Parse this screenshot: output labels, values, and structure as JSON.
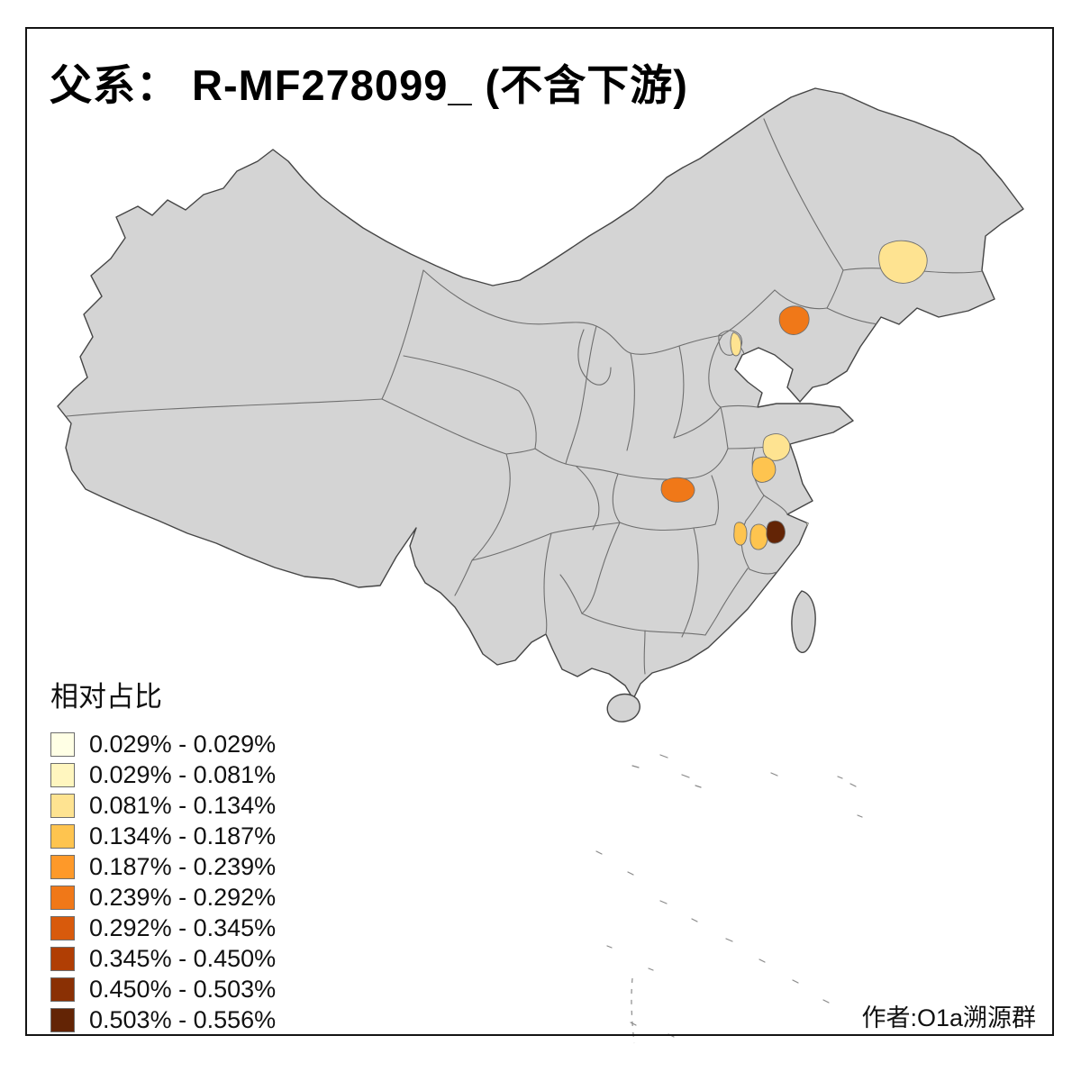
{
  "title": "父系： R-MF278099_ (不含下游)",
  "attribution": "作者:O1a溯源群",
  "legend": {
    "title": "相对占比",
    "items": [
      {
        "label": "0.029% - 0.029%",
        "color": "#FFFFE5"
      },
      {
        "label": "0.029% - 0.081%",
        "color": "#FFF6BF"
      },
      {
        "label": "0.081% - 0.134%",
        "color": "#FEE391"
      },
      {
        "label": "0.134% - 0.187%",
        "color": "#FEC44F"
      },
      {
        "label": "0.187% - 0.239%",
        "color": "#FE9929"
      },
      {
        "label": "0.239% - 0.292%",
        "color": "#F07818"
      },
      {
        "label": "0.292% - 0.345%",
        "color": "#D85A0C"
      },
      {
        "label": "0.345% - 0.450%",
        "color": "#B03E04"
      },
      {
        "label": "0.450% - 0.503%",
        "color": "#8A3004"
      },
      {
        "label": "0.503% - 0.556%",
        "color": "#632405"
      }
    ]
  },
  "map": {
    "land_color": "#d4d4d4",
    "outline_color": "#454545",
    "inner_border_color": "#6f6f6f",
    "background_color": "#ffffff",
    "regions": [
      {
        "name": "jilin-area",
        "value_range": "0.081% - 0.134%",
        "color": "#FEE391"
      },
      {
        "name": "liaoning-area",
        "value_range": "0.239% - 0.292%",
        "color": "#F07818"
      },
      {
        "name": "beijing-south-area",
        "value_range": "0.081% - 0.134%",
        "color": "#FEE391"
      },
      {
        "name": "jiangsu-north-area",
        "value_range": "0.081% - 0.134%",
        "color": "#FEE391"
      },
      {
        "name": "jiangsu-south-area",
        "value_range": "0.134% - 0.187%",
        "color": "#FEC44F"
      },
      {
        "name": "hubei-area",
        "value_range": "0.239% - 0.292%",
        "color": "#F07818"
      },
      {
        "name": "anhui-south-area",
        "value_range": "0.134% - 0.187%",
        "color": "#FEC44F"
      },
      {
        "name": "zhejiang-west-area",
        "value_range": "0.134% - 0.187%",
        "color": "#FEC44F"
      },
      {
        "name": "zhejiang-north-area",
        "value_range": "0.503% - 0.556%",
        "color": "#632405"
      },
      {
        "name": "zhejiang-coast-area",
        "value_range": "0.029% - 0.029%",
        "color": "#FFFFE5"
      }
    ]
  }
}
